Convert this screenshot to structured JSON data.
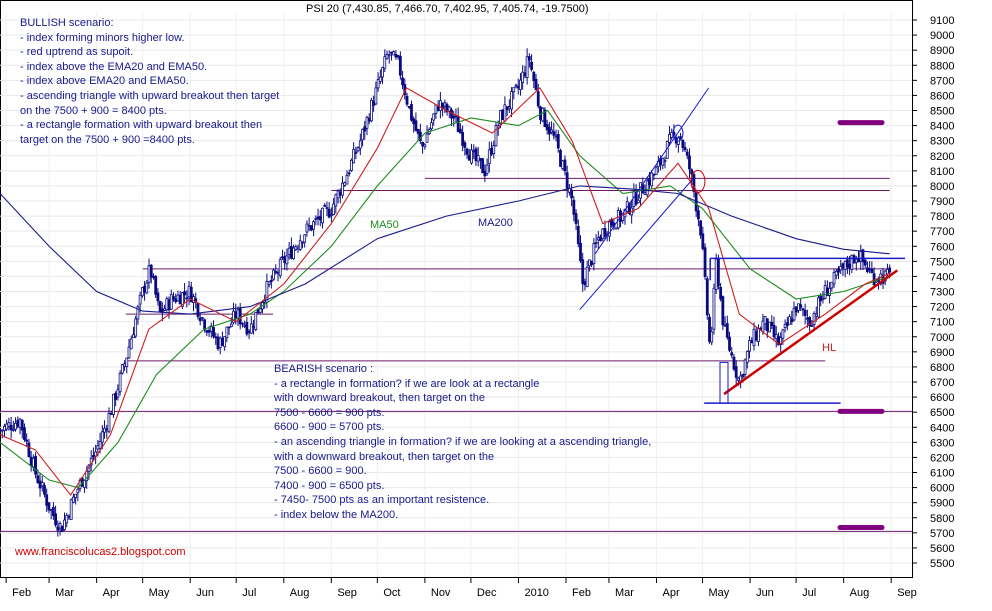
{
  "chart_data": {
    "type": "candlestick",
    "title": "PSI 20 (7,430.85, 7,466.70, 7,402.95, 7,405.74, -19.7500)",
    "ylim": [
      5400,
      9200
    ],
    "y_ticks": [
      5500,
      5600,
      5700,
      5800,
      5900,
      6000,
      6100,
      6200,
      6300,
      6400,
      6500,
      6600,
      6700,
      6800,
      6900,
      7000,
      7100,
      7200,
      7300,
      7400,
      7500,
      7600,
      7700,
      7800,
      7900,
      8000,
      8100,
      8200,
      8300,
      8400,
      8500,
      8600,
      8700,
      8800,
      8900,
      9000,
      9100
    ],
    "x_ticks": [
      "Feb",
      "Mar",
      "Apr",
      "May",
      "Jun",
      "Jul",
      "Aug",
      "Sep",
      "Oct",
      "Nov",
      "Dec",
      "2010",
      "Feb",
      "Mar",
      "Apr",
      "May",
      "Jun",
      "Jul",
      "Aug",
      "Sep"
    ],
    "close_path": [
      [
        "2009-01-28",
        6380
      ],
      [
        "2009-02-10",
        6450
      ],
      [
        "2009-02-20",
        6100
      ],
      [
        "2009-03-02",
        5850
      ],
      [
        "2009-03-09",
        5730
      ],
      [
        "2009-03-20",
        6000
      ],
      [
        "2009-04-01",
        6250
      ],
      [
        "2009-04-10",
        6500
      ],
      [
        "2009-04-20",
        6850
      ],
      [
        "2009-05-01",
        7300
      ],
      [
        "2009-05-06",
        7450
      ],
      [
        "2009-05-12",
        7150
      ],
      [
        "2009-05-20",
        7250
      ],
      [
        "2009-06-01",
        7300
      ],
      [
        "2009-06-10",
        7100
      ],
      [
        "2009-06-20",
        6950
      ],
      [
        "2009-07-01",
        7150
      ],
      [
        "2009-07-10",
        7050
      ],
      [
        "2009-07-20",
        7300
      ],
      [
        "2009-08-01",
        7500
      ],
      [
        "2009-08-15",
        7700
      ],
      [
        "2009-09-01",
        7850
      ],
      [
        "2009-09-10",
        8050
      ],
      [
        "2009-09-20",
        8300
      ],
      [
        "2009-10-01",
        8650
      ],
      [
        "2009-10-08",
        8880
      ],
      [
        "2009-10-15",
        8800
      ],
      [
        "2009-10-22",
        8500
      ],
      [
        "2009-10-30",
        8250
      ],
      [
        "2009-11-10",
        8550
      ],
      [
        "2009-11-20",
        8450
      ],
      [
        "2009-12-01",
        8200
      ],
      [
        "2009-12-10",
        8100
      ],
      [
        "2009-12-20",
        8450
      ],
      [
        "2010-01-01",
        8650
      ],
      [
        "2010-01-08",
        8850
      ],
      [
        "2010-01-15",
        8500
      ],
      [
        "2010-01-25",
        8300
      ],
      [
        "2010-02-05",
        7900
      ],
      [
        "2010-02-12",
        7350
      ],
      [
        "2010-02-22",
        7650
      ],
      [
        "2010-03-01",
        7750
      ],
      [
        "2010-03-10",
        7800
      ],
      [
        "2010-03-20",
        7950
      ],
      [
        "2010-04-01",
        8100
      ],
      [
        "2010-04-10",
        8300
      ],
      [
        "2010-04-16",
        8350
      ],
      [
        "2010-04-23",
        8100
      ],
      [
        "2010-04-30",
        7700
      ],
      [
        "2010-05-06",
        6900
      ],
      [
        "2010-05-10",
        7500
      ],
      [
        "2010-05-15",
        7050
      ],
      [
        "2010-05-25",
        6700
      ],
      [
        "2010-06-01",
        6950
      ],
      [
        "2010-06-10",
        7100
      ],
      [
        "2010-06-20",
        6950
      ],
      [
        "2010-07-01",
        7200
      ],
      [
        "2010-07-10",
        7100
      ],
      [
        "2010-07-20",
        7300
      ],
      [
        "2010-08-01",
        7450
      ],
      [
        "2010-08-10",
        7550
      ],
      [
        "2010-08-20",
        7400
      ],
      [
        "2010-08-31",
        7400
      ]
    ],
    "series": [
      {
        "name": "MA50",
        "color": "#1e8c1e",
        "points": [
          [
            "2009-01-28",
            6300
          ],
          [
            "2009-03-01",
            6050
          ],
          [
            "2009-03-20",
            6000
          ],
          [
            "2009-04-15",
            6300
          ],
          [
            "2009-05-10",
            6750
          ],
          [
            "2009-06-10",
            7050
          ],
          [
            "2009-07-10",
            7150
          ],
          [
            "2009-08-01",
            7300
          ],
          [
            "2009-09-01",
            7600
          ],
          [
            "2009-10-01",
            8000
          ],
          [
            "2009-11-01",
            8350
          ],
          [
            "2009-12-01",
            8450
          ],
          [
            "2010-01-01",
            8400
          ],
          [
            "2010-01-20",
            8500
          ],
          [
            "2010-02-10",
            8200
          ],
          [
            "2010-03-10",
            7950
          ],
          [
            "2010-04-10",
            8000
          ],
          [
            "2010-05-01",
            7850
          ],
          [
            "2010-06-01",
            7450
          ],
          [
            "2010-07-01",
            7250
          ],
          [
            "2010-08-01",
            7300
          ],
          [
            "2010-08-31",
            7400
          ]
        ]
      },
      {
        "name": "MA200",
        "color": "#1a1a8c",
        "points": [
          [
            "2009-01-28",
            7950
          ],
          [
            "2009-03-01",
            7600
          ],
          [
            "2009-04-01",
            7300
          ],
          [
            "2009-05-01",
            7170
          ],
          [
            "2009-06-01",
            7150
          ],
          [
            "2009-07-10",
            7200
          ],
          [
            "2009-08-15",
            7350
          ],
          [
            "2009-10-01",
            7650
          ],
          [
            "2009-11-15",
            7800
          ],
          [
            "2010-01-01",
            7900
          ],
          [
            "2010-02-10",
            8000
          ],
          [
            "2010-03-15",
            7980
          ],
          [
            "2010-04-15",
            7950
          ],
          [
            "2010-05-20",
            7800
          ],
          [
            "2010-07-01",
            7650
          ],
          [
            "2010-08-01",
            7580
          ],
          [
            "2010-08-31",
            7550
          ]
        ]
      },
      {
        "name": "EMA20",
        "color": "#cc2020",
        "points": [
          [
            "2009-01-28",
            6350
          ],
          [
            "2009-02-20",
            6250
          ],
          [
            "2009-03-15",
            5950
          ],
          [
            "2009-04-10",
            6350
          ],
          [
            "2009-05-05",
            7050
          ],
          [
            "2009-06-01",
            7250
          ],
          [
            "2009-07-01",
            7100
          ],
          [
            "2009-08-01",
            7350
          ],
          [
            "2009-09-01",
            7750
          ],
          [
            "2009-10-01",
            8250
          ],
          [
            "2009-10-20",
            8650
          ],
          [
            "2009-11-15",
            8500
          ],
          [
            "2009-12-15",
            8350
          ],
          [
            "2010-01-15",
            8650
          ],
          [
            "2010-02-05",
            8300
          ],
          [
            "2010-02-25",
            7750
          ],
          [
            "2010-03-20",
            7850
          ],
          [
            "2010-04-15",
            8150
          ],
          [
            "2010-05-05",
            7850
          ],
          [
            "2010-05-25",
            7150
          ],
          [
            "2010-06-20",
            6950
          ],
          [
            "2010-07-20",
            7150
          ],
          [
            "2010-08-15",
            7350
          ],
          [
            "2010-08-31",
            7420
          ]
        ]
      }
    ],
    "horizontal_lines": [
      {
        "y": 8050,
        "x0": "2009-11-01",
        "x1": "2010-08-31",
        "color": "#6b1a6b"
      },
      {
        "y": 7970,
        "x0": "2009-09-01",
        "x1": "2010-08-31",
        "color": "#6b1a6b"
      },
      {
        "y": 7450,
        "x0": "2009-05-01",
        "x1": "2010-08-31",
        "color": "#6b1a6b"
      },
      {
        "y": 7150,
        "x0": "2009-04-20",
        "x1": "2009-07-25",
        "color": "#6b1a6b"
      },
      {
        "y": 6840,
        "x0": "2009-04-20",
        "x1": "2010-07-20",
        "color": "#6b1a6b"
      },
      {
        "y": 6505,
        "x0": "2009-01-28",
        "x1": "2010-09-15",
        "color": "#6b1a6b"
      },
      {
        "y": 5710,
        "x0": "2009-01-28",
        "x1": "2010-09-15",
        "color": "#6b1a6b"
      }
    ],
    "rectangle": {
      "y_low": 6560,
      "y_high": 7520,
      "x0": "2010-05-06",
      "x1": "2010-09-10",
      "color": "#1a1acc"
    },
    "channel": {
      "lower": [
        [
          "2010-02-10",
          7180
        ],
        [
          "2010-04-25",
          8050
        ]
      ],
      "upper": [
        [
          "2010-02-20",
          7550
        ],
        [
          "2010-05-05",
          8650
        ]
      ],
      "color": "#1a1acc"
    },
    "uptrend": {
      "points": [
        [
          "2010-05-15",
          6620
        ],
        [
          "2010-09-05",
          7440
        ]
      ],
      "color": "#cc0000"
    },
    "target_markers": [
      {
        "y": 8420,
        "color": "#800080"
      },
      {
        "y": 6505,
        "color": "#800080"
      },
      {
        "y": 5735,
        "color": "#800080"
      }
    ],
    "annotations": {
      "ma50_label": "MA50",
      "ma200_label": "MA200",
      "hl_label": "HL"
    }
  },
  "notes": {
    "bullish": [
      "BULLISH scenario:",
      "- index forming minors higher low.",
      "- red uptrend as supoit.",
      "- index above the EMA20 and EMA50.",
      "- index above EMA20 and EMA50.",
      "- ascending triangle with upward breakout then target",
      "on the 7500 + 900 = 8400 pts.",
      "- a rectangle formation with upward breakout then",
      "target on the 7500 + 900 =8400 pts."
    ],
    "bearish": [
      "BEARISH scenario :",
      "- a rectangle in formation? if we are look at a rectangle",
      "with downward breakout, then target on the",
      "7500 - 6600 = 900 pts.",
      "6600 - 900 = 5700 pts.",
      "- an ascending triangle in formation? if we are looking at a ascending triangle,",
      "with a downward breakout, then target on the",
      "7500 - 6600 = 900.",
      "7400 - 900 = 6500 pts.",
      "- 7450- 7500 pts as an important resistence.",
      "- index below the MA200."
    ]
  },
  "footer": "www.franciscolucas2.blogspot.com",
  "colors": {
    "grid": "#e8e8e8",
    "candles": "#0a0a80",
    "text_blue": "#1a1a8c",
    "footer_red": "#cc0000"
  }
}
